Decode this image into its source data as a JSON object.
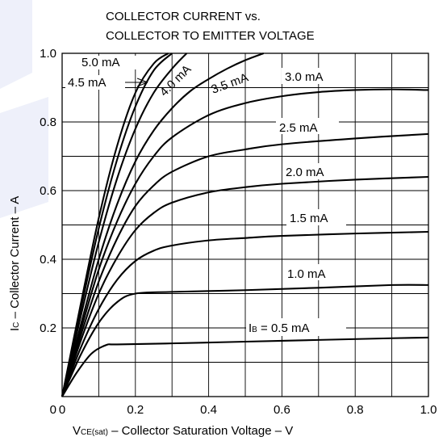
{
  "chart_data": {
    "type": "line",
    "title_lines": [
      "COLLECTOR CURRENT vs.",
      "COLLECTOR TO EMITTER VOLTAGE"
    ],
    "xlabel": {
      "main": "V",
      "sub": "CE(sat)",
      "rest": " – Collector Saturation Voltage – V"
    },
    "ylabel": {
      "main": "I",
      "sub": "C",
      "rest": " – Collector Current – A"
    },
    "xlim": [
      0,
      1.0
    ],
    "ylim": [
      0,
      1.0
    ],
    "x_ticks": [
      "0",
      "0.2",
      "0.4",
      "0.6",
      "0.8",
      "1.0"
    ],
    "y_ticks": [
      "0",
      "0.2",
      "0.4",
      "0.6",
      "0.8",
      "1.0"
    ],
    "grid": true,
    "ib_symbol": {
      "main": "I",
      "sub": "B",
      "rest": " = 0.5 mA"
    },
    "series": [
      {
        "name": "0.5 mA",
        "x": [
          0,
          0.04,
          0.08,
          0.12,
          0.15,
          0.3,
          0.5,
          0.7,
          0.9,
          1.0
        ],
        "y": [
          0,
          0.07,
          0.125,
          0.15,
          0.152,
          0.155,
          0.16,
          0.165,
          0.17,
          0.172
        ]
      },
      {
        "name": "1.0 mA",
        "x": [
          0,
          0.05,
          0.1,
          0.15,
          0.2,
          0.3,
          0.5,
          0.7,
          0.9,
          1.0
        ],
        "y": [
          0,
          0.12,
          0.215,
          0.275,
          0.3,
          0.305,
          0.31,
          0.317,
          0.325,
          0.325
        ]
      },
      {
        "name": "1.5 mA",
        "x": [
          0,
          0.05,
          0.1,
          0.15,
          0.2,
          0.25,
          0.3,
          0.4,
          0.5,
          0.6,
          0.8,
          1.0
        ],
        "y": [
          0,
          0.14,
          0.255,
          0.34,
          0.395,
          0.425,
          0.44,
          0.455,
          0.462,
          0.468,
          0.475,
          0.48
        ]
      },
      {
        "name": "2.0 mA",
        "x": [
          0,
          0.05,
          0.1,
          0.15,
          0.2,
          0.25,
          0.3,
          0.4,
          0.5,
          0.6,
          0.8,
          1.0
        ],
        "y": [
          0,
          0.16,
          0.3,
          0.405,
          0.485,
          0.535,
          0.565,
          0.595,
          0.61,
          0.62,
          0.632,
          0.64
        ]
      },
      {
        "name": "2.5 mA",
        "x": [
          0,
          0.05,
          0.1,
          0.15,
          0.2,
          0.25,
          0.3,
          0.4,
          0.5,
          0.6,
          0.8,
          1.0
        ],
        "y": [
          0,
          0.175,
          0.335,
          0.46,
          0.555,
          0.615,
          0.655,
          0.7,
          0.72,
          0.735,
          0.752,
          0.765
        ]
      },
      {
        "name": "3.0 mA",
        "x": [
          0,
          0.05,
          0.1,
          0.15,
          0.2,
          0.25,
          0.3,
          0.4,
          0.5,
          0.6,
          0.7,
          0.8,
          0.9,
          1.0
        ],
        "y": [
          0,
          0.19,
          0.37,
          0.51,
          0.62,
          0.7,
          0.755,
          0.82,
          0.855,
          0.875,
          0.887,
          0.893,
          0.895,
          0.893
        ]
      },
      {
        "name": "3.5 mA",
        "x": [
          0,
          0.05,
          0.1,
          0.15,
          0.2,
          0.25,
          0.3,
          0.35,
          0.4,
          0.45,
          0.5,
          0.55
        ],
        "y": [
          0,
          0.205,
          0.4,
          0.56,
          0.685,
          0.775,
          0.84,
          0.89,
          0.925,
          0.955,
          0.98,
          1.0
        ]
      },
      {
        "name": "4.0 mA",
        "x": [
          0,
          0.05,
          0.1,
          0.15,
          0.2,
          0.25,
          0.3,
          0.34
        ],
        "y": [
          0,
          0.23,
          0.45,
          0.635,
          0.78,
          0.885,
          0.955,
          1.0
        ]
      },
      {
        "name": "4.5 mA",
        "x": [
          0,
          0.05,
          0.1,
          0.15,
          0.2,
          0.25,
          0.3
        ],
        "y": [
          0,
          0.25,
          0.49,
          0.69,
          0.845,
          0.95,
          1.0
        ]
      },
      {
        "name": "5.0 mA",
        "x": [
          0,
          0.05,
          0.1,
          0.15,
          0.2,
          0.25,
          0.29
        ],
        "y": [
          0,
          0.265,
          0.52,
          0.73,
          0.885,
          0.97,
          1.0
        ]
      }
    ]
  }
}
